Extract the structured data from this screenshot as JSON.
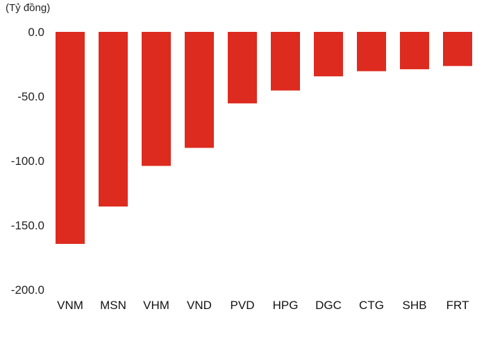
{
  "chart_data": {
    "type": "bar",
    "unit_label": "(Tỷ đồng)",
    "categories": [
      "VNM",
      "MSN",
      "VHM",
      "VND",
      "PVD",
      "HPG",
      "DGC",
      "CTG",
      "SHB",
      "FRT"
    ],
    "values": [
      -164.5,
      -135.5,
      -104,
      -90,
      -55.5,
      -45.5,
      -34.5,
      -30.5,
      -29,
      -26.5
    ],
    "ylim": [
      -200,
      0
    ],
    "yticks": [
      0,
      -50,
      -100,
      -150,
      -200
    ],
    "ytick_labels": [
      "0.0",
      "-50.0",
      "-100.0",
      "-150.0",
      "-200.0"
    ],
    "bar_color": "#dd2b1f",
    "grid": false,
    "legend": "none"
  }
}
